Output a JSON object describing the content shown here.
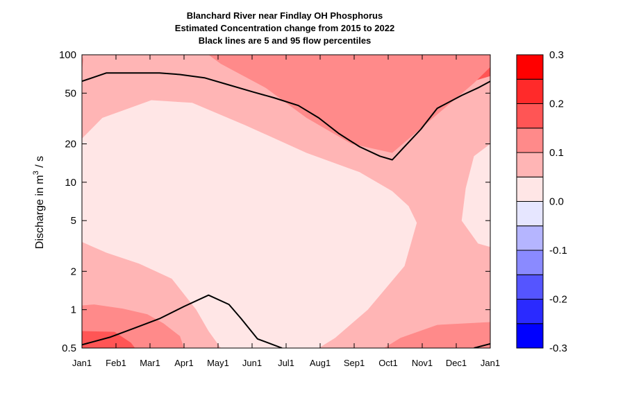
{
  "chart_data": {
    "type": "heatmap",
    "title": [
      "Blanchard River near Findlay OH  Phosphorus",
      "Estimated Concentration change from 2015 to 2022",
      "Black lines are 5 and 95 flow percentiles"
    ],
    "ylabel_parts": {
      "main": "Discharge in m",
      "sup": "3",
      "end": " / s"
    },
    "xlabel": "",
    "x_ticks": [
      "Jan1",
      "Feb1",
      "Mar1",
      "Apr1",
      "May1",
      "Jun1",
      "Jul1",
      "Aug1",
      "Sep1",
      "Oct1",
      "Nov1",
      "Dec1",
      "Jan1"
    ],
    "y_scale": "log",
    "ylim": [
      0.5,
      100
    ],
    "y_ticks": [
      0.5,
      1,
      2,
      5,
      10,
      20,
      50,
      100
    ],
    "y_tick_labels": [
      "0.5",
      "1",
      "2",
      "5",
      "10",
      "20",
      "50",
      "100"
    ],
    "colorbar": {
      "levels": [
        -0.3,
        -0.25,
        -0.2,
        -0.15,
        -0.1,
        -0.05,
        0.0,
        0.05,
        0.1,
        0.15,
        0.2,
        0.25,
        0.3
      ],
      "colors": [
        "#0000ff",
        "#2a2aff",
        "#5555ff",
        "#8a8aff",
        "#b5b5ff",
        "#e6e6ff",
        "#ffe6e6",
        "#ffb5b5",
        "#ff8a8a",
        "#ff5555",
        "#ff2a2a",
        "#ff0000"
      ],
      "tick_values": [
        -0.3,
        -0.2,
        -0.1,
        0.0,
        0.1,
        0.2,
        0.3
      ],
      "tick_labels": [
        "-0.3",
        "-0.2",
        "-0.1",
        "0.0",
        "0.1",
        "0.2",
        "0.3"
      ]
    },
    "contours": [
      {
        "level_range": [
          0.15,
          0.2
        ],
        "color": "#ff5555",
        "points": [
          [
            0.0,
            100
          ],
          [
            1.0,
            100
          ],
          [
            1.0,
            68
          ],
          [
            0.86,
            50
          ],
          [
            0.7,
            46
          ],
          [
            0.58,
            48
          ],
          [
            0.49,
            60
          ],
          [
            0.46,
            72
          ],
          [
            0.47,
            85
          ],
          [
            0.46,
            100
          ],
          [
            0.0,
            100
          ]
        ]
      },
      {
        "level_range": [
          0.1,
          0.15
        ],
        "color": "#ff8a8a",
        "points": [
          [
            0.31,
            100
          ],
          [
            0.34,
            85
          ],
          [
            0.45,
            55
          ],
          [
            0.55,
            32
          ],
          [
            0.66,
            20
          ],
          [
            0.76,
            17
          ],
          [
            0.86,
            32
          ],
          [
            0.96,
            60
          ],
          [
            1.0,
            80
          ],
          [
            1.0,
            100
          ]
        ]
      },
      {
        "level_range": [
          0.1,
          0.15
        ],
        "color": "#ff8a8a",
        "points": [
          [
            0.0,
            100
          ],
          [
            0.003,
            92
          ],
          [
            0.0,
            75
          ]
        ]
      },
      {
        "level_range": [
          0.1,
          0.15
        ],
        "color": "#ff8a8a",
        "points": [
          [
            0.0,
            1.08
          ],
          [
            0.03,
            1.1
          ],
          [
            0.1,
            1.02
          ],
          [
            0.16,
            0.92
          ],
          [
            0.2,
            0.78
          ],
          [
            0.24,
            0.62
          ],
          [
            0.25,
            0.5
          ],
          [
            0.0,
            0.5
          ]
        ]
      },
      {
        "level_range": [
          0.1,
          0.15
        ],
        "color": "#ff8a8a",
        "points": [
          [
            0.74,
            0.5
          ],
          [
            0.78,
            0.6
          ],
          [
            0.87,
            0.76
          ],
          [
            1.0,
            0.8
          ],
          [
            1.0,
            0.5
          ]
        ]
      },
      {
        "level_range": [
          0.15,
          0.2
        ],
        "color": "#ff5555",
        "points": [
          [
            0.0,
            0.68
          ],
          [
            0.08,
            0.67
          ],
          [
            0.12,
            0.55
          ],
          [
            0.13,
            0.5
          ],
          [
            0.0,
            0.5
          ]
        ]
      },
      {
        "level_range": [
          0.0,
          0.05
        ],
        "color": "#ffe6e6",
        "points": [
          [
            0.0,
            22
          ],
          [
            0.05,
            32
          ],
          [
            0.17,
            44
          ],
          [
            0.27,
            42
          ],
          [
            0.4,
            28
          ],
          [
            0.55,
            17
          ],
          [
            0.68,
            12
          ],
          [
            0.76,
            8.5
          ],
          [
            0.8,
            6.5
          ],
          [
            0.82,
            4.8
          ],
          [
            0.79,
            2.2
          ],
          [
            0.7,
            1.0
          ],
          [
            0.62,
            0.6
          ],
          [
            0.58,
            0.5
          ],
          [
            0.34,
            0.5
          ],
          [
            0.31,
            0.68
          ],
          [
            0.28,
            1.0
          ],
          [
            0.22,
            1.75
          ],
          [
            0.14,
            2.3
          ],
          [
            0.06,
            2.8
          ],
          [
            0.0,
            3.4
          ]
        ]
      },
      {
        "level_range": [
          0.0,
          0.05
        ],
        "color": "#ffe6e6",
        "points": [
          [
            1.0,
            20
          ],
          [
            0.96,
            16
          ],
          [
            0.94,
            9
          ],
          [
            0.93,
            5
          ],
          [
            0.97,
            3.3
          ],
          [
            1.0,
            3.1
          ]
        ]
      }
    ],
    "percentile_lines": [
      {
        "name": "95",
        "points": [
          [
            0.0,
            62
          ],
          [
            0.06,
            72
          ],
          [
            0.13,
            72
          ],
          [
            0.19,
            72
          ],
          [
            0.24,
            70
          ],
          [
            0.3,
            66
          ],
          [
            0.36,
            58
          ],
          [
            0.42,
            51
          ],
          [
            0.47,
            46
          ],
          [
            0.53,
            40
          ],
          [
            0.58,
            32
          ],
          [
            0.63,
            24
          ],
          [
            0.68,
            19
          ],
          [
            0.73,
            16
          ],
          [
            0.76,
            15
          ],
          [
            0.79,
            19
          ],
          [
            0.83,
            26
          ],
          [
            0.87,
            38
          ],
          [
            0.93,
            48
          ],
          [
            0.97,
            55
          ],
          [
            1.0,
            62
          ]
        ]
      },
      {
        "name": "5",
        "points": [
          [
            0.0,
            0.53
          ],
          [
            0.07,
            0.61
          ],
          [
            0.13,
            0.72
          ],
          [
            0.19,
            0.85
          ],
          [
            0.25,
            1.06
          ],
          [
            0.31,
            1.3
          ],
          [
            0.36,
            1.1
          ],
          [
            0.39,
            0.85
          ],
          [
            0.43,
            0.59
          ],
          [
            0.49,
            0.5
          ]
        ]
      },
      {
        "name": "5b",
        "points": [
          [
            0.96,
            0.5
          ],
          [
            1.0,
            0.54
          ]
        ]
      }
    ]
  }
}
